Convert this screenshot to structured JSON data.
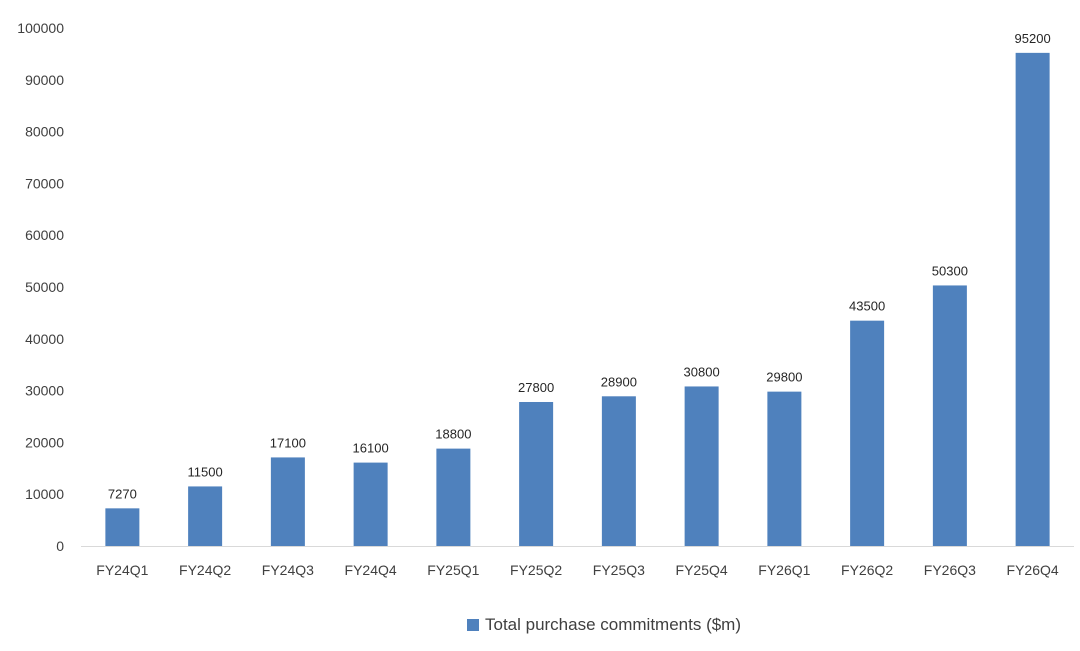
{
  "chart_data": {
    "type": "bar",
    "categories": [
      "FY24Q1",
      "FY24Q2",
      "FY24Q3",
      "FY24Q4",
      "FY25Q1",
      "FY25Q2",
      "FY25Q3",
      "FY25Q4",
      "FY26Q1",
      "FY26Q2",
      "FY26Q3",
      "FY26Q4"
    ],
    "series": [
      {
        "name": "Total purchase commitments ($m)",
        "values": [
          7270,
          11500,
          17100,
          16100,
          18800,
          27800,
          28900,
          30800,
          29800,
          43500,
          50300,
          95200
        ],
        "color": "#4f81bd"
      }
    ],
    "title": "",
    "xlabel": "",
    "ylabel": "",
    "ylim": [
      0,
      100000
    ],
    "yticks": [
      0,
      10000,
      20000,
      30000,
      40000,
      50000,
      60000,
      70000,
      80000,
      90000,
      100000
    ],
    "data_labels": true,
    "grid": false,
    "legend_position": "bottom"
  }
}
